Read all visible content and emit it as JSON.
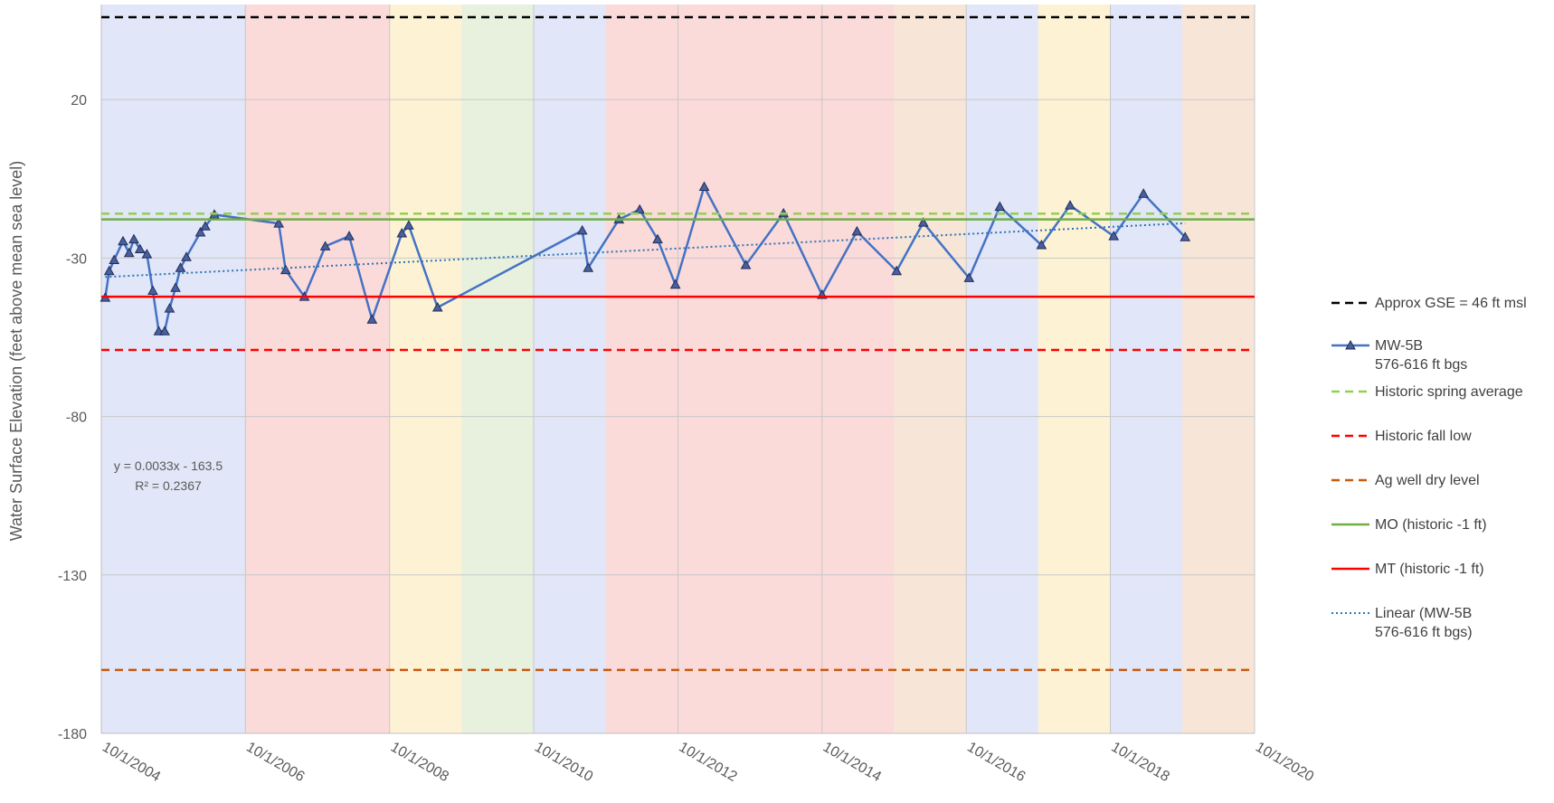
{
  "chart_data": {
    "type": "line",
    "y_label": "Water Surface Elevation (feet above mean sea level)",
    "annotation": [
      "y = 0.0033x - 163.5",
      "R² = 0.2367"
    ],
    "ylim": [
      -180,
      50
    ],
    "yticks": [
      -180,
      -130,
      -80,
      -30,
      20
    ],
    "xlim": [
      "2004-10-01",
      "2020-10-01"
    ],
    "xticks": [
      {
        "value": "2004-10-01",
        "label": "10/1/2004"
      },
      {
        "value": "2006-10-01",
        "label": "10/1/2006"
      },
      {
        "value": "2008-10-01",
        "label": "10/1/2008"
      },
      {
        "value": "2010-10-01",
        "label": "10/1/2010"
      },
      {
        "value": "2012-10-01",
        "label": "10/1/2012"
      },
      {
        "value": "2014-10-01",
        "label": "10/1/2014"
      },
      {
        "value": "2016-10-01",
        "label": "10/1/2016"
      },
      {
        "value": "2018-10-01",
        "label": "10/1/2018"
      },
      {
        "value": "2020-10-01",
        "label": "10/1/2020"
      }
    ],
    "grid": true,
    "legend": "right",
    "bands": [
      {
        "start": "2004-10-01",
        "end": "2006-10-01",
        "color": "#c8d2f2"
      },
      {
        "start": "2006-10-01",
        "end": "2008-10-01",
        "color": "#f7bcbc"
      },
      {
        "start": "2008-10-01",
        "end": "2009-10-01",
        "color": "#fbe9b0"
      },
      {
        "start": "2009-10-01",
        "end": "2010-10-01",
        "color": "#d3e6c2"
      },
      {
        "start": "2010-10-01",
        "end": "2011-10-01",
        "color": "#c8d2f2"
      },
      {
        "start": "2011-10-01",
        "end": "2015-10-01",
        "color": "#f7bcbc"
      },
      {
        "start": "2015-10-01",
        "end": "2016-10-01",
        "color": "#f1cfb6"
      },
      {
        "start": "2016-10-01",
        "end": "2017-10-01",
        "color": "#c8d2f2"
      },
      {
        "start": "2017-10-01",
        "end": "2018-10-01",
        "color": "#fbe9b0"
      },
      {
        "start": "2018-10-01",
        "end": "2019-10-01",
        "color": "#c8d2f2"
      },
      {
        "start": "2019-10-01",
        "end": "2020-10-01",
        "color": "#f1cfb6"
      }
    ],
    "series": [
      {
        "name": "Approx GSE = 46 ft msl",
        "color": "#000000",
        "value": 46,
        "dash": "dashed"
      },
      {
        "name": "MW-5B\n576-616 ft bgs",
        "color": "#4472c4",
        "marker": "triangle",
        "marker_color": "#4a5f9c",
        "x": [
          "2004-10-21",
          "2004-11-10",
          "2004-12-05",
          "2005-01-19",
          "2005-02-19",
          "2005-03-15",
          "2005-04-15",
          "2005-05-20",
          "2005-06-19",
          "2005-07-19",
          "2005-08-18",
          "2005-09-12",
          "2005-10-12",
          "2005-11-06",
          "2005-12-06",
          "2006-02-15",
          "2006-03-12",
          "2006-04-27",
          "2007-03-19",
          "2007-04-23",
          "2007-07-27",
          "2007-11-10",
          "2008-03-10",
          "2008-07-04",
          "2008-12-02",
          "2009-01-06",
          "2009-06-01",
          "2011-06-04",
          "2011-07-04",
          "2011-12-07",
          "2012-03-21",
          "2012-06-20",
          "2012-09-18",
          "2013-02-11",
          "2013-09-10",
          "2014-03-20",
          "2014-10-01",
          "2015-03-27",
          "2015-10-14",
          "2016-02-26",
          "2016-10-15",
          "2017-03-20",
          "2017-10-17",
          "2018-03-11",
          "2018-10-18",
          "2019-03-18",
          "2019-10-15"
        ],
        "values": [
          -42.5,
          -34.1,
          -30.6,
          -24.7,
          -28.4,
          -24.1,
          -27.2,
          -28.8,
          -40.3,
          -53.1,
          -53.1,
          -45.9,
          -39.4,
          -33.1,
          -29.7,
          -21.9,
          -20.0,
          -16.3,
          -19.1,
          -33.8,
          -42.2,
          -26.3,
          -23.1,
          -49.4,
          -22.2,
          -19.7,
          -45.6,
          -21.3,
          -33.1,
          -17.8,
          -14.7,
          -24.1,
          -38.4,
          -7.5,
          -32.2,
          -15.9,
          -41.6,
          -21.6,
          -34.1,
          -18.8,
          -36.3,
          -13.8,
          -25.9,
          -13.4,
          -23.1,
          -9.7,
          -23.4
        ]
      },
      {
        "name": "Historic spring average",
        "color": "#92d050",
        "value": -16,
        "dash": "dashed"
      },
      {
        "name": "Historic fall low",
        "color": "#ff0000",
        "value": -59,
        "dash": "dashed"
      },
      {
        "name": "Ag well dry level",
        "color": "#c55a11",
        "value": -160,
        "dash": "dashed"
      },
      {
        "name": "MO (historic -1 ft)",
        "color": "#70ad47",
        "value": -17.8,
        "dash": "solid"
      },
      {
        "name": "MT (historic -1 ft)",
        "color": "#ff0000",
        "value": -42.2,
        "dash": "solid"
      },
      {
        "name": "Linear (MW-5B\n576-616 ft bgs)",
        "color": "#2e75b6",
        "dash": "dotted",
        "x": [
          "2004-10-21",
          "2019-10-15"
        ],
        "values": [
          -36,
          -19
        ]
      }
    ]
  }
}
